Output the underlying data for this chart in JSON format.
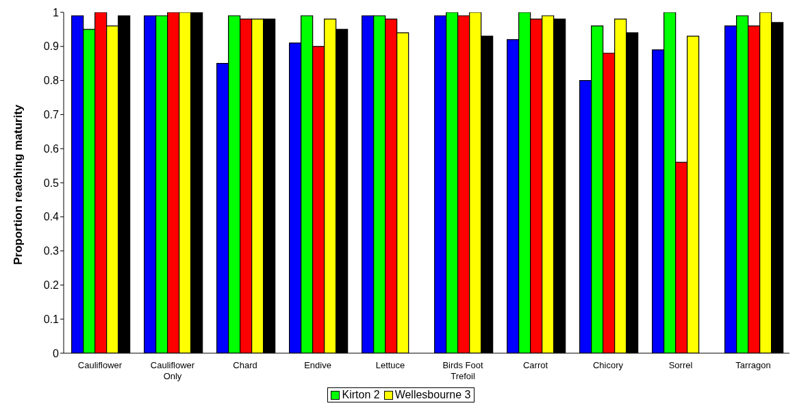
{
  "chart_data": {
    "type": "bar",
    "ylabel": "Proportion reaching maturity",
    "categories": [
      "Cauliflower",
      "Cauliflower Only",
      "Chard",
      "Endive",
      "Lettuce",
      "Birds Foot Trefoil",
      "Carrot",
      "Chicory",
      "Sorrel",
      "Tarragon"
    ],
    "series": [
      {
        "color": "#0000ff",
        "values": [
          0.99,
          0.99,
          0.85,
          0.91,
          0.99,
          0.99,
          0.92,
          0.8,
          0.89,
          0.96
        ]
      },
      {
        "name": "Kirton 2",
        "color": "#00ff00",
        "values": [
          0.95,
          0.99,
          0.99,
          0.99,
          0.99,
          1.0,
          1.0,
          0.96,
          1.0,
          0.99
        ]
      },
      {
        "color": "#ff0000",
        "values": [
          1.0,
          1.0,
          0.98,
          0.9,
          0.98,
          0.99,
          0.98,
          0.88,
          0.56,
          0.96
        ]
      },
      {
        "name": "Wellesbourne 3",
        "color": "#ffff00",
        "values": [
          0.96,
          1.0,
          0.98,
          0.98,
          0.94,
          1.0,
          0.99,
          0.98,
          0.93,
          1.0
        ]
      },
      {
        "color": "#000000",
        "values": [
          0.99,
          1.0,
          0.98,
          0.95,
          null,
          0.93,
          0.98,
          0.94,
          null,
          0.97
        ]
      }
    ],
    "ylim": [
      0,
      1
    ],
    "yticks": [
      0,
      0.1,
      0.2,
      0.3,
      0.4,
      0.5,
      0.6,
      0.7,
      0.8,
      0.9,
      1
    ],
    "grid": false,
    "legend": "bottom"
  }
}
